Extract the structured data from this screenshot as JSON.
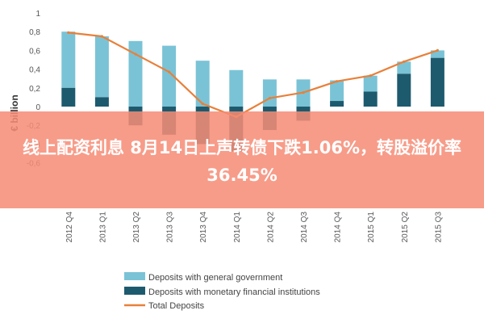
{
  "chart_data": {
    "type": "bar",
    "stacked": true,
    "categories": [
      "2012 Q4",
      "2013 Q1",
      "2013 Q2",
      "2013 Q3",
      "2013 Q4",
      "2014 Q1",
      "2014 Q2",
      "2014 Q3",
      "2014 Q4",
      "2015 Q1",
      "2015 Q2",
      "2015 Q3"
    ],
    "series": [
      {
        "name": "Deposits with general government",
        "color": "#7ac3d6",
        "values": [
          0.6,
          0.65,
          0.7,
          0.65,
          0.49,
          0.39,
          0.29,
          0.29,
          0.22,
          0.17,
          0.13,
          0.08
        ]
      },
      {
        "name": "Deposits with monetary financial institutions",
        "color": "#1e5a6e",
        "values": [
          0.2,
          0.1,
          -0.2,
          -0.3,
          -0.4,
          -0.48,
          -0.25,
          -0.15,
          0.06,
          0.16,
          0.35,
          0.52
        ]
      },
      {
        "name": "Total Deposits",
        "type": "line",
        "color": "#e8803a",
        "values": [
          0.79,
          0.75,
          0.56,
          0.37,
          0.03,
          -0.11,
          0.09,
          0.15,
          0.27,
          0.33,
          0.48,
          0.6
        ]
      }
    ],
    "ylabel": "€ billion",
    "ylim": [
      -0.7,
      1.0
    ],
    "yticks": [
      1,
      0.8,
      0.6,
      0.4,
      0.2,
      0,
      -0.2,
      -0.4,
      -0.6
    ],
    "ytick_labels": [
      "1",
      "0,8",
      "0,6",
      "0,4",
      "0,2",
      "0",
      "-0,2",
      "-0,4",
      "-0,6"
    ],
    "legend_position": "bottom"
  },
  "banner": {
    "text": "线上配资利息 8月14日上声转债下跌1.06%，转股溢价率36.45%"
  }
}
